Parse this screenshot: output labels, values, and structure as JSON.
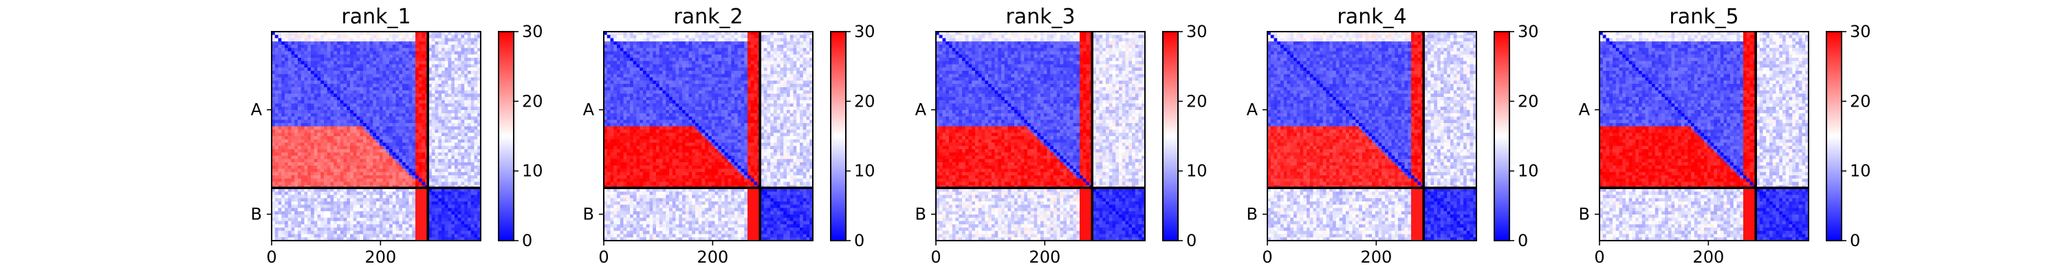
{
  "chart_data": [
    {
      "type": "heatmap",
      "title": "rank_1",
      "x_ticks": [
        0,
        200
      ],
      "y_labels": [
        "A",
        "B"
      ],
      "chain_lengths": {
        "A": 287,
        "B": 97
      },
      "colorbar": {
        "min": 0,
        "max": 30,
        "ticks": [
          0,
          10,
          20,
          30
        ],
        "colormap": "bwr"
      },
      "blocks": {
        "AA_top_rows": 15.0,
        "AA_core": 5.0,
        "AA_lower_rows": 24.0,
        "A_tail_col": 28.5,
        "AB": 12.5,
        "BB": 3.0
      },
      "grid": false
    },
    {
      "type": "heatmap",
      "title": "rank_2",
      "x_ticks": [
        0,
        200
      ],
      "y_labels": [
        "A",
        "B"
      ],
      "chain_lengths": {
        "A": 287,
        "B": 97
      },
      "colorbar": {
        "min": 0,
        "max": 30,
        "ticks": [
          0,
          10,
          20,
          30
        ],
        "colormap": "bwr"
      },
      "blocks": {
        "AA_top_rows": 13.5,
        "AA_core": 5.0,
        "AA_lower_rows": 29.0,
        "A_tail_col": 29.0,
        "AB": 13.0,
        "BB": 3.0
      },
      "grid": false
    },
    {
      "type": "heatmap",
      "title": "rank_3",
      "x_ticks": [
        0,
        200
      ],
      "y_labels": [
        "A",
        "B"
      ],
      "chain_lengths": {
        "A": 287,
        "B": 97
      },
      "colorbar": {
        "min": 0,
        "max": 30,
        "ticks": [
          0,
          10,
          20,
          30
        ],
        "colormap": "bwr"
      },
      "blocks": {
        "AA_top_rows": 14.0,
        "AA_core": 5.0,
        "AA_lower_rows": 28.5,
        "A_tail_col": 29.0,
        "AB": 13.5,
        "BB": 3.0
      },
      "grid": false
    },
    {
      "type": "heatmap",
      "title": "rank_4",
      "x_ticks": [
        0,
        200
      ],
      "y_labels": [
        "A",
        "B"
      ],
      "chain_lengths": {
        "A": 287,
        "B": 97
      },
      "colorbar": {
        "min": 0,
        "max": 30,
        "ticks": [
          0,
          10,
          20,
          30
        ],
        "colormap": "bwr"
      },
      "blocks": {
        "AA_top_rows": 15.0,
        "AA_core": 5.0,
        "AA_lower_rows": 27.5,
        "A_tail_col": 28.5,
        "AB": 13.0,
        "BB": 3.0
      },
      "grid": false
    },
    {
      "type": "heatmap",
      "title": "rank_5",
      "x_ticks": [
        0,
        200
      ],
      "y_labels": [
        "A",
        "B"
      ],
      "chain_lengths": {
        "A": 287,
        "B": 97
      },
      "colorbar": {
        "min": 0,
        "max": 30,
        "ticks": [
          0,
          10,
          20,
          30
        ],
        "colormap": "bwr"
      },
      "blocks": {
        "AA_top_rows": 14.0,
        "AA_core": 5.0,
        "AA_lower_rows": 29.0,
        "A_tail_col": 29.0,
        "AB": 13.0,
        "BB": 3.0
      },
      "grid": false
    }
  ]
}
